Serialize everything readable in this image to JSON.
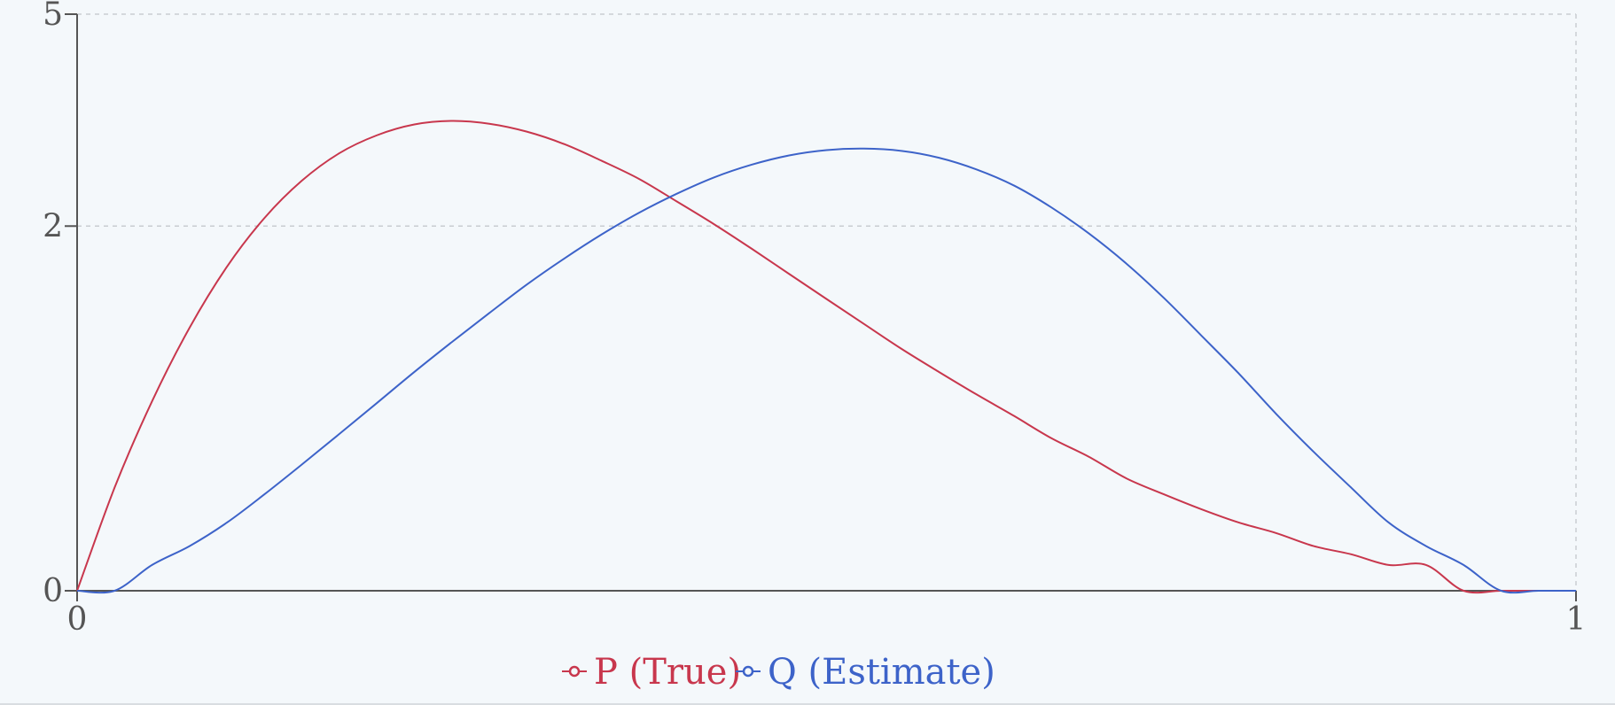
{
  "chart_data": {
    "type": "line",
    "title": "",
    "xlabel": "",
    "ylabel": "",
    "xlim": [
      0,
      1
    ],
    "ylim": [
      0,
      5
    ],
    "x_ticks": [
      "0",
      "1"
    ],
    "y_ticks": [
      "0",
      "2",
      "5"
    ],
    "grid": true,
    "legend_position": "bottom-center",
    "series": [
      {
        "name": "P (True)",
        "color": "#c8374d",
        "x": [
          0,
          0.025,
          0.05,
          0.075,
          0.1,
          0.125,
          0.15,
          0.175,
          0.2,
          0.225,
          0.25,
          0.275,
          0.3,
          0.325,
          0.35,
          0.375,
          0.4,
          0.425,
          0.45,
          0.475,
          0.5,
          0.525,
          0.55,
          0.575,
          0.6,
          0.625,
          0.65,
          0.675,
          0.7,
          0.725,
          0.75,
          0.775,
          0.8,
          0.825,
          0.85,
          0.875,
          0.9,
          0.925,
          0.95,
          0.975,
          1
        ],
        "y": [
          0,
          0.16,
          0.54,
          1.04,
          1.58,
          2.09,
          2.53,
          2.88,
          3.12,
          3.27,
          3.32,
          3.28,
          3.17,
          3.0,
          2.78,
          2.55,
          2.28,
          2.02,
          1.76,
          1.51,
          1.28,
          1.07,
          0.88,
          0.72,
          0.58,
          0.46,
          0.35,
          0.27,
          0.19,
          0.14,
          0.1,
          0.07,
          0.05,
          0.03,
          0.02,
          0.01,
          0.01,
          0.0,
          0.0,
          0.0,
          0
        ]
      },
      {
        "name": "Q (Estimate)",
        "color": "#3d63c9",
        "x": [
          0,
          0.025,
          0.05,
          0.075,
          0.1,
          0.125,
          0.15,
          0.175,
          0.2,
          0.225,
          0.25,
          0.275,
          0.3,
          0.325,
          0.35,
          0.375,
          0.4,
          0.425,
          0.45,
          0.475,
          0.5,
          0.525,
          0.55,
          0.575,
          0.6,
          0.625,
          0.65,
          0.675,
          0.7,
          0.725,
          0.75,
          0.775,
          0.8,
          0.825,
          0.85,
          0.875,
          0.9,
          0.925,
          0.95,
          0.975,
          1
        ],
        "y": [
          0,
          0.0,
          0.01,
          0.03,
          0.07,
          0.14,
          0.24,
          0.37,
          0.53,
          0.72,
          0.93,
          1.16,
          1.41,
          1.66,
          1.91,
          2.15,
          2.37,
          2.57,
          2.73,
          2.85,
          2.92,
          2.94,
          2.91,
          2.82,
          2.67,
          2.47,
          2.21,
          1.92,
          1.61,
          1.29,
          0.98,
          0.71,
          0.47,
          0.29,
          0.16,
          0.07,
          0.03,
          0.01,
          0.0,
          0.0,
          0
        ]
      }
    ]
  }
}
